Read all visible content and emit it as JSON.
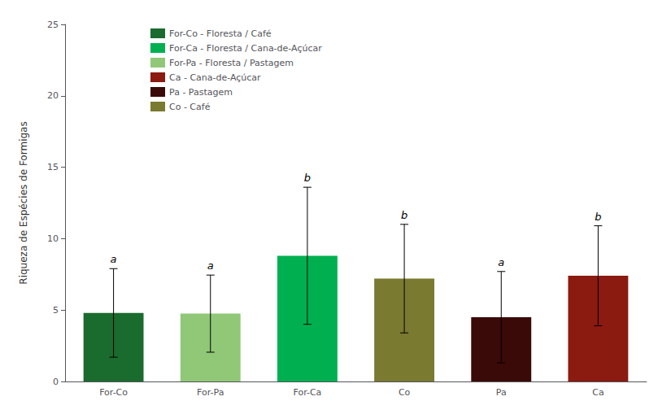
{
  "chart_data": {
    "type": "bar",
    "categories": [
      "For-Co",
      "For-Pa",
      "For-Ca",
      "Co",
      "Pa",
      "Ca"
    ],
    "values": [
      4.8,
      4.75,
      8.8,
      7.2,
      4.5,
      7.4
    ],
    "errors": [
      3.1,
      2.7,
      4.8,
      3.8,
      3.2,
      3.5
    ],
    "colors": [
      "#1a6b2e",
      "#90c878",
      "#00b050",
      "#7a7a30",
      "#3a0a08",
      "#8b1a10"
    ],
    "annotations": [
      "a",
      "a",
      "b",
      "b",
      "a",
      "b"
    ],
    "ylabel": "Riqueza de Espécies de Formigas",
    "ylim": [
      0,
      25
    ],
    "yticks": [
      0,
      5,
      10,
      15,
      20,
      25
    ],
    "grid": false,
    "legend": "upper left",
    "legend_items": [
      {
        "name": "For-Co - Floresta / Café",
        "color": "#1a6b2e"
      },
      {
        "name": "For-Ca - Floresta / Cana-de-Açúcar",
        "color": "#00b050"
      },
      {
        "name": "For-Pa - Floresta / Pastagem",
        "color": "#90c878"
      },
      {
        "name": "Ca - Cana-de-Açúcar",
        "color": "#8b1a10"
      },
      {
        "name": "Pa - Pastagem",
        "color": "#3a0a08"
      },
      {
        "name": "Co - Café",
        "color": "#7a7a30"
      }
    ]
  }
}
